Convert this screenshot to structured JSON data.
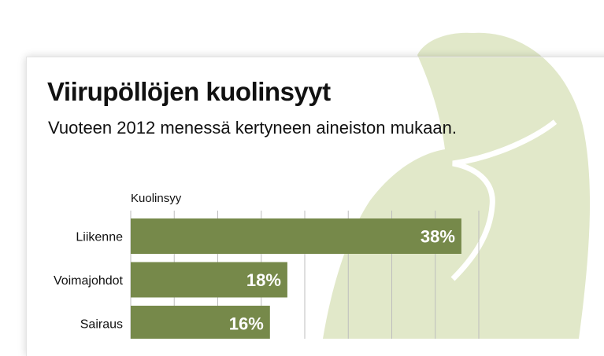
{
  "header": {
    "title": "Viirupöllöjen kuolinsyyt",
    "subtitle": "Vuoteen 2012 menessä kertyneen aineiston mukaan."
  },
  "colors": {
    "bar": "#76894a",
    "owl_silhouette": "#e1e8c9",
    "gridline": "#bdbdbd",
    "label_text": "#111111",
    "value_text": "#ffffff"
  },
  "chart_data": {
    "type": "bar",
    "orientation": "horizontal",
    "category_axis_label": "Kuolinsyy",
    "categories": [
      "Liikenne",
      "Voimajohdot",
      "Sairaus"
    ],
    "values": [
      38,
      18,
      16
    ],
    "value_labels": [
      "38%",
      "18%",
      "16%"
    ],
    "unit": "%",
    "xlim": [
      0,
      40
    ],
    "grid": true
  }
}
